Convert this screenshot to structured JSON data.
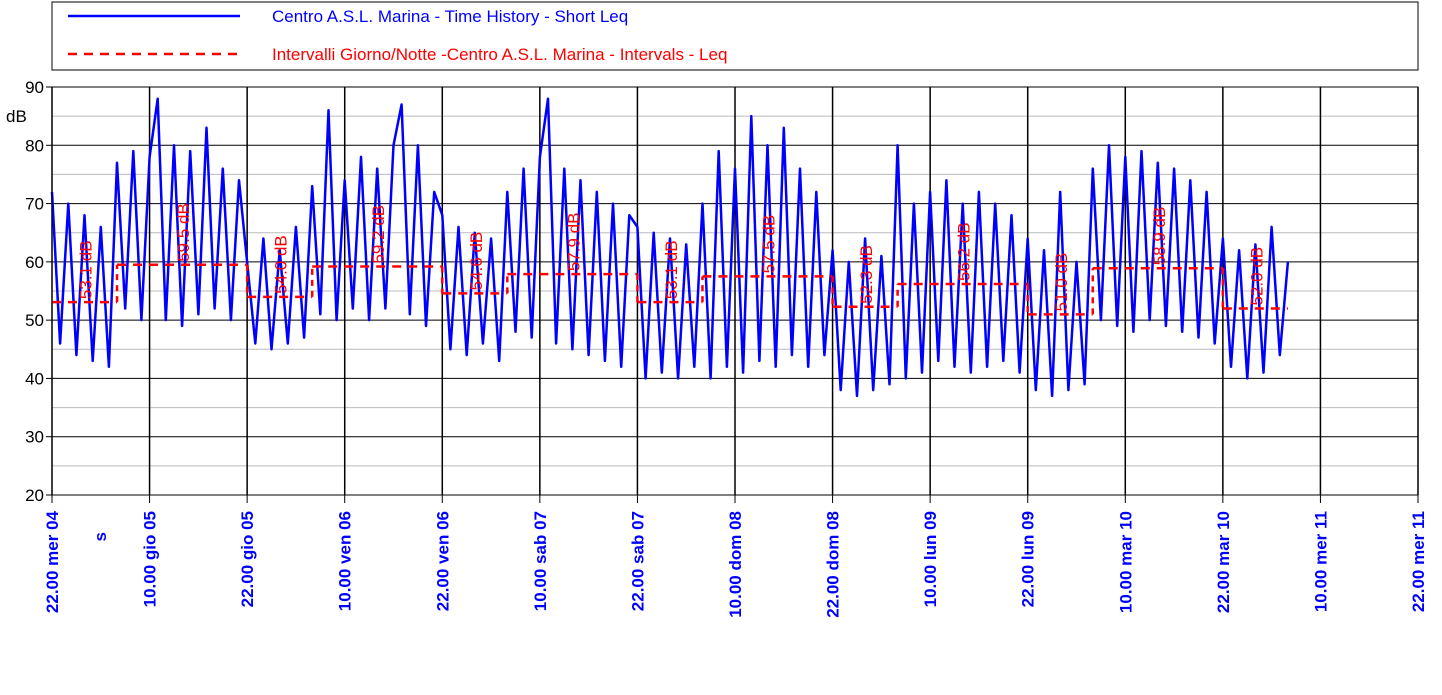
{
  "chart_data": {
    "type": "line",
    "y_unit": "dB",
    "x_extra_label": "s",
    "xlim": [
      0,
      168
    ],
    "xticks": [
      {
        "value": 0,
        "label": "22.00 mer 04"
      },
      {
        "value": 12,
        "label": "10.00 gio 05"
      },
      {
        "value": 24,
        "label": "22.00 gio 05"
      },
      {
        "value": 36,
        "label": "10.00 ven 06"
      },
      {
        "value": 48,
        "label": "22.00 ven 06"
      },
      {
        "value": 60,
        "label": "10.00 sab 07"
      },
      {
        "value": 72,
        "label": "22.00 sab 07"
      },
      {
        "value": 84,
        "label": "10.00 dom 08"
      },
      {
        "value": 96,
        "label": "22.00 dom 08"
      },
      {
        "value": 108,
        "label": "10.00 lun 09"
      },
      {
        "value": 120,
        "label": "22.00 lun 09"
      },
      {
        "value": 132,
        "label": "10.00 mar 10"
      },
      {
        "value": 144,
        "label": "22.00 mar 10"
      },
      {
        "value": 156,
        "label": "10.00 mer 11"
      },
      {
        "value": 168,
        "label": "22.00 mer 11"
      }
    ],
    "ylim": [
      20,
      90
    ],
    "yticks": [
      20,
      30,
      40,
      50,
      60,
      70,
      80,
      90
    ],
    "minor_yticks": [
      25,
      35,
      45,
      55,
      65,
      75,
      85
    ],
    "grid": true,
    "series": [
      {
        "name": "Centro A.S.L. Marina - Time History - Short Leq",
        "color": "#0000ff",
        "x": [
          0,
          1,
          2,
          3,
          4,
          5,
          6,
          7,
          8,
          9,
          10,
          11,
          12,
          13,
          14,
          15,
          16,
          17,
          18,
          19,
          20,
          21,
          22,
          23,
          24,
          25,
          26,
          27,
          28,
          29,
          30,
          31,
          32,
          33,
          34,
          35,
          36,
          37,
          38,
          39,
          40,
          41,
          42,
          43,
          44,
          45,
          46,
          47,
          48,
          49,
          50,
          51,
          52,
          53,
          54,
          55,
          56,
          57,
          58,
          59,
          60,
          61,
          62,
          63,
          64,
          65,
          66,
          67,
          68,
          69,
          70,
          71,
          72,
          73,
          74,
          75,
          76,
          77,
          78,
          79,
          80,
          81,
          82,
          83,
          84,
          85,
          86,
          87,
          88,
          89,
          90,
          91,
          92,
          93,
          94,
          95,
          96,
          97,
          98,
          99,
          100,
          101,
          102,
          103,
          104,
          105,
          106,
          107,
          108,
          109,
          110,
          111,
          112,
          113,
          114,
          115,
          116,
          117,
          118,
          119,
          120,
          121,
          122,
          123,
          124,
          125,
          126,
          127,
          128,
          129,
          130,
          131,
          132,
          133,
          134,
          135,
          136,
          137,
          138,
          139,
          140,
          141,
          142,
          143,
          144,
          145,
          146,
          147,
          148,
          149,
          150,
          151,
          152
        ],
        "values": [
          72,
          46,
          70,
          44,
          68,
          43,
          66,
          42,
          77,
          52,
          79,
          50,
          78,
          88,
          50,
          80,
          49,
          79,
          51,
          83,
          52,
          76,
          50,
          74,
          60,
          46,
          64,
          45,
          62,
          46,
          66,
          47,
          73,
          51,
          86,
          50,
          74,
          52,
          78,
          50,
          76,
          52,
          80,
          87,
          51,
          80,
          49,
          72,
          68,
          45,
          66,
          44,
          65,
          46,
          64,
          43,
          72,
          48,
          76,
          47,
          78,
          88,
          46,
          76,
          45,
          74,
          44,
          72,
          43,
          70,
          42,
          68,
          66,
          40,
          65,
          41,
          64,
          40,
          63,
          42,
          70,
          40,
          79,
          42,
          76,
          41,
          85,
          43,
          80,
          42,
          83,
          44,
          76,
          42,
          72,
          44,
          62,
          38,
          60,
          37,
          64,
          38,
          61,
          39,
          80,
          40,
          70,
          41,
          72,
          43,
          74,
          42,
          70,
          41,
          72,
          42,
          70,
          43,
          68,
          41,
          64,
          38,
          62,
          37,
          72,
          38,
          60,
          39,
          76,
          50,
          80,
          49,
          78,
          48,
          79,
          50,
          77,
          49,
          76,
          48,
          74,
          47,
          72,
          46,
          64,
          42,
          62,
          40,
          63,
          41,
          66,
          44,
          60
        ]
      }
    ],
    "intervals": {
      "name": "Intervalli Giorno/Notte -Centro A.S.L. Marina - Intervals - Leq",
      "color": "#ff0000",
      "starts": [
        0,
        8,
        24,
        32,
        48,
        56,
        72,
        80,
        96,
        104,
        120,
        128,
        144
      ],
      "ends": [
        8,
        24,
        32,
        48,
        56,
        72,
        80,
        96,
        104,
        120,
        128,
        144,
        152
      ],
      "values": [
        53.1,
        59.5,
        54.0,
        59.2,
        54.6,
        57.9,
        53.1,
        57.5,
        52.3,
        56.2,
        51.0,
        58.9,
        52.0
      ],
      "value_labels": [
        "53.1 dB",
        "59.5 dB",
        "54.0 dB",
        "59.2 dB",
        "54.6 dB",
        "57.9 dB",
        "53.1 dB",
        "57.5 dB",
        "52.3 dB",
        "56.2 dB",
        "51.0 dB",
        "58.9 dB",
        "52.0 dB"
      ]
    }
  }
}
